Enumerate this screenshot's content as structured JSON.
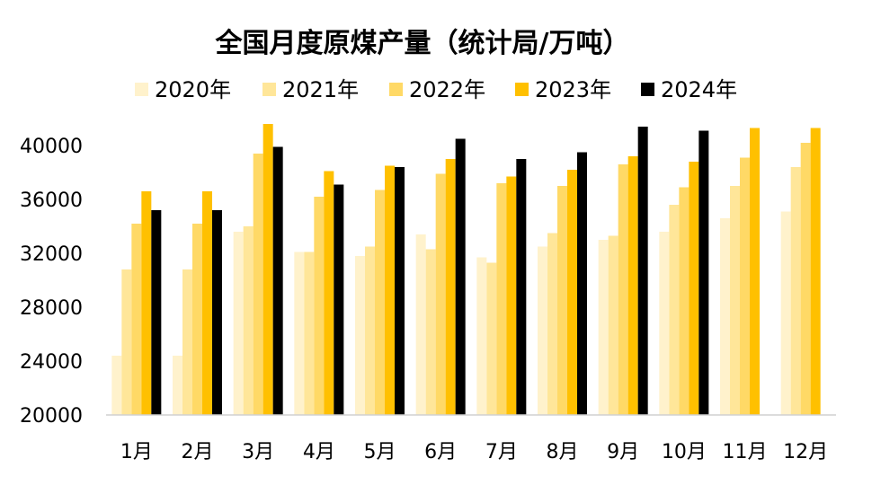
{
  "chart_data": {
    "type": "bar",
    "title": "全国月度原煤产量（统计局/万吨）",
    "categories": [
      "1月",
      "2月",
      "3月",
      "4月",
      "5月",
      "6月",
      "7月",
      "8月",
      "9月",
      "10月",
      "11月",
      "12月"
    ],
    "series": [
      {
        "name": "2020年",
        "color": "#FFF2CC",
        "values": [
          24400,
          24400,
          33600,
          32100,
          31800,
          33400,
          31700,
          32500,
          33000,
          33600,
          34600,
          35100
        ]
      },
      {
        "name": "2021年",
        "color": "#FFE699",
        "values": [
          30800,
          30800,
          34000,
          32100,
          32500,
          32300,
          31300,
          33500,
          33300,
          35600,
          37000,
          38400
        ]
      },
      {
        "name": "2022年",
        "color": "#FFD966",
        "values": [
          34200,
          34200,
          39400,
          36200,
          36700,
          37900,
          37200,
          37000,
          38600,
          36900,
          39100,
          40200
        ]
      },
      {
        "name": "2023年",
        "color": "#FFC000",
        "values": [
          36600,
          36600,
          41600,
          38100,
          38500,
          39000,
          37700,
          38200,
          39200,
          38800,
          41300,
          41300
        ]
      },
      {
        "name": "2024年",
        "color": "#000000",
        "values": [
          35200,
          35200,
          39900,
          37100,
          38400,
          40500,
          39000,
          39500,
          41400,
          41100,
          null,
          null
        ]
      }
    ],
    "yticks": [
      "20000",
      "24000",
      "28000",
      "32000",
      "36000",
      "40000"
    ],
    "ylim": [
      20000,
      43000
    ],
    "legend": "top",
    "grid": false
  }
}
